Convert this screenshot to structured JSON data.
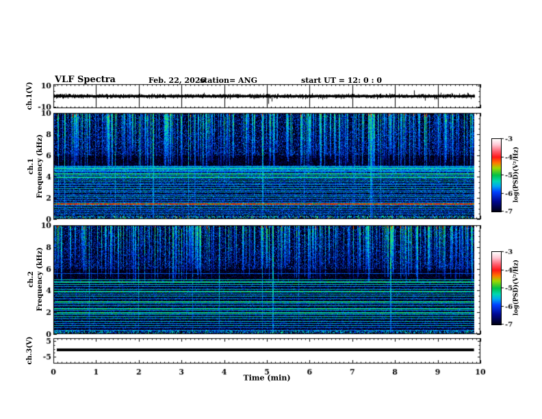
{
  "header": {
    "title": "VLF Spectra",
    "date": "Feb. 22, 2026",
    "station": "station= ANG",
    "start_ut": "start UT =  12: 0  : 0"
  },
  "axes": {
    "x": {
      "label": "Time (min)",
      "min": 0,
      "max": 10,
      "ticks": [
        0,
        1,
        2,
        3,
        4,
        5,
        6,
        7,
        8,
        9,
        10
      ],
      "minor_step": 0.1,
      "data_end_min": 9.85
    }
  },
  "colorbars": {
    "label": "log(PSD)(V²/Hz)",
    "ticks": [
      -3,
      -4,
      -5,
      -6,
      -7
    ],
    "gradient_stops": [
      [
        0,
        "#ffffff"
      ],
      [
        8,
        "#ffc8d4"
      ],
      [
        17,
        "#ff6070"
      ],
      [
        25,
        "#ff1818"
      ],
      [
        33,
        "#ff7800"
      ],
      [
        40,
        "#a0d800"
      ],
      [
        50,
        "#00c048"
      ],
      [
        58,
        "#00d8b0"
      ],
      [
        65,
        "#00a8f0"
      ],
      [
        73,
        "#0040ff"
      ],
      [
        86,
        "#000890"
      ],
      [
        100,
        "#000014"
      ]
    ]
  },
  "intensity_palette": {
    "stops": [
      [
        0.06,
        "#000004"
      ],
      [
        0.18,
        "#00002a"
      ],
      [
        0.3,
        "#000e74"
      ],
      [
        0.42,
        "#0032c8"
      ],
      [
        0.54,
        "#0068f0"
      ],
      [
        0.66,
        "#00b4e0"
      ],
      [
        0.78,
        "#00e0a0"
      ],
      [
        0.88,
        "#38e050"
      ],
      [
        0.94,
        "#ffa000"
      ],
      [
        1.01,
        "#ff4020"
      ]
    ]
  },
  "chart_data": [
    {
      "type": "line",
      "id": "ch1_waveform",
      "ylabel": "ch.1(V)",
      "ylim": [
        -10,
        10
      ],
      "ytick_labels": [
        10,
        -10
      ],
      "yticks_minor": [
        5,
        0,
        -5
      ],
      "baseline_V": 0,
      "noise_band_V": 1.5,
      "grid_at_major_x": true,
      "seed": 3,
      "spikes": [
        {
          "t": 0.35,
          "v": 2.2
        },
        {
          "t": 1.25,
          "v": -2.4
        },
        {
          "t": 2.3,
          "v": 2.5
        },
        {
          "t": 3.1,
          "v": -2.2
        },
        {
          "t": 3.98,
          "v": 2.0
        },
        {
          "t": 5.03,
          "v": -7.2
        },
        {
          "t": 5.12,
          "v": -5.0
        },
        {
          "t": 5.55,
          "v": 2.2
        },
        {
          "t": 6.2,
          "v": -2.5
        },
        {
          "t": 6.9,
          "v": 2.6
        },
        {
          "t": 7.58,
          "v": -3.0
        },
        {
          "t": 8.44,
          "v": 5.5
        },
        {
          "t": 8.7,
          "v": -4.2
        },
        {
          "t": 9.35,
          "v": 2.2
        },
        {
          "t": 9.7,
          "v": 3.2
        }
      ]
    },
    {
      "type": "heatmap",
      "id": "ch1_spectrogram",
      "ylabel_channel": "ch.1",
      "ylabel": "Frequency (kHz)",
      "ylim": [
        0,
        10
      ],
      "yticks": [
        0,
        2,
        4,
        6,
        8,
        10
      ],
      "ytick_minor_step": 0.5,
      "description": "VLF spectrogram: dense sferic vertical streaks 5-10 kHz, quiet band 5-6 kHz, narrowband horizontal lines below 5 kHz, strong cyan band near 4.7-5.0 kHz, orange hum line near 1.5 kHz, bright broadband strip at 0-0.3 kHz",
      "seed": 7,
      "noise": {
        "upper": 0.52,
        "mid": 0.26,
        "lower": 0.48
      },
      "streaks": {
        "count": 280,
        "full_height_fraction": 0.04,
        "bottom_kHz_range": [
          4.3,
          6.5
        ]
      },
      "forced_full_streaks": [
        2.33,
        4.9,
        7.42
      ],
      "wash_bands": [
        {
          "f": 4.72,
          "hw": 0.3,
          "s": 0.52
        }
      ],
      "lines": [
        {
          "f": 4.95,
          "s": 0.72
        },
        {
          "f": 4.82,
          "s": 0.78
        },
        {
          "f": 4.65,
          "s": 0.75
        },
        {
          "f": 4.5,
          "s": 0.6
        },
        {
          "f": 4.32,
          "s": 0.8
        },
        {
          "f": 4.15,
          "s": 0.65
        },
        {
          "f": 3.98,
          "s": 0.78
        },
        {
          "f": 3.8,
          "s": 0.6
        },
        {
          "f": 3.62,
          "s": 0.7
        },
        {
          "f": 3.45,
          "s": 0.55
        },
        {
          "f": 3.28,
          "s": 0.65
        },
        {
          "f": 3.1,
          "s": 0.6
        },
        {
          "f": 2.9,
          "s": 0.72
        },
        {
          "f": 2.72,
          "s": 0.58
        },
        {
          "f": 2.55,
          "s": 0.65
        },
        {
          "f": 2.35,
          "s": 0.55
        },
        {
          "f": 2.18,
          "s": 0.68
        },
        {
          "f": 2.0,
          "s": 0.6
        },
        {
          "f": 1.82,
          "s": 0.55
        },
        {
          "f": 1.62,
          "s": 0.6
        },
        {
          "f": 1.5,
          "s": 0.92
        },
        {
          "f": 1.3,
          "s": 0.6
        },
        {
          "f": 1.1,
          "s": 0.68
        },
        {
          "f": 0.9,
          "s": 0.58
        },
        {
          "f": 0.7,
          "s": 0.55
        },
        {
          "f": 0.5,
          "s": 0.6
        }
      ],
      "bottom_band": {
        "f_max": 0.28,
        "s": 0.78
      }
    },
    {
      "type": "heatmap",
      "id": "ch2_spectrogram",
      "ylabel_channel": "ch.2",
      "ylabel": "Frequency (kHz)",
      "ylim": [
        0,
        10
      ],
      "yticks": [
        0,
        2,
        4,
        6,
        8,
        10
      ],
      "ytick_minor_step": 0.5,
      "description": "VLF spectrogram: sferic vertical streaks 5.5-10 kHz on darker background, many narrow green/cyan horizontal lines 0.4-5.6 kHz, bright strip at 0-0.3 kHz",
      "seed": 13,
      "noise": {
        "upper": 0.48,
        "mid": 0.24,
        "lower": 0.36
      },
      "streaks": {
        "count": 250,
        "full_height_fraction": 0.03,
        "bottom_kHz_range": [
          4.6,
          6.6
        ]
      },
      "forced_full_streaks": [
        5.14,
        7.9
      ],
      "wash_bands": [],
      "lines": [
        {
          "f": 5.6,
          "s": 0.5
        },
        {
          "f": 5.05,
          "s": 0.72
        },
        {
          "f": 4.82,
          "s": 0.8
        },
        {
          "f": 4.6,
          "s": 0.75
        },
        {
          "f": 4.38,
          "s": 0.62
        },
        {
          "f": 4.15,
          "s": 0.7
        },
        {
          "f": 3.95,
          "s": 0.8
        },
        {
          "f": 3.72,
          "s": 0.65
        },
        {
          "f": 3.5,
          "s": 0.75
        },
        {
          "f": 3.3,
          "s": 0.6
        },
        {
          "f": 3.05,
          "s": 0.82
        },
        {
          "f": 2.85,
          "s": 0.6
        },
        {
          "f": 2.62,
          "s": 0.7
        },
        {
          "f": 2.42,
          "s": 0.78
        },
        {
          "f": 2.2,
          "s": 0.62
        },
        {
          "f": 2.02,
          "s": 0.8
        },
        {
          "f": 1.82,
          "s": 0.65
        },
        {
          "f": 1.62,
          "s": 0.75
        },
        {
          "f": 1.42,
          "s": 0.68
        },
        {
          "f": 1.22,
          "s": 0.72
        },
        {
          "f": 1.02,
          "s": 0.6
        },
        {
          "f": 0.82,
          "s": 0.68
        },
        {
          "f": 0.6,
          "s": 0.55
        },
        {
          "f": 0.4,
          "s": 0.6
        }
      ],
      "bottom_band": {
        "f_max": 0.26,
        "s": 0.72
      }
    },
    {
      "type": "line",
      "id": "ch3_waveform",
      "ylabel": "ch.3(V)",
      "ylim": [
        -5,
        5
      ],
      "ytick_labels": [
        5,
        -5
      ],
      "yticks_minor": [
        2.5,
        0,
        -2.5
      ],
      "constant_value_V": -0.8,
      "line_thickness_px": 4,
      "t_start": 0.08,
      "t_end": 9.85
    }
  ]
}
